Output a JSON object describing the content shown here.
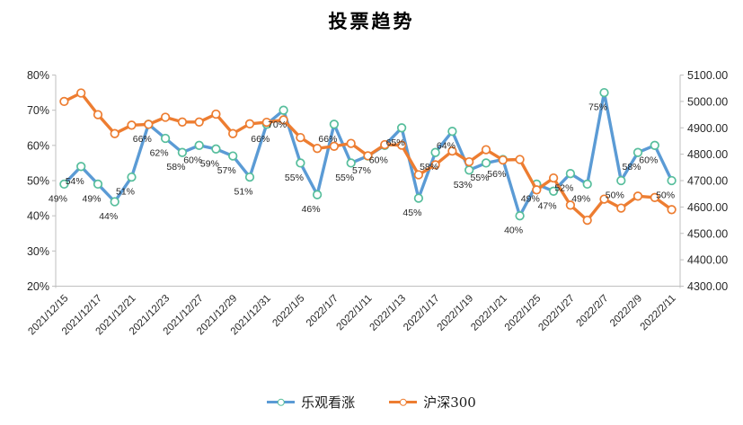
{
  "chart_data": {
    "type": "line",
    "title": "投票趋势",
    "grid": false,
    "x_tick_labels": [
      "2021/12/15",
      "2021/12/17",
      "2021/12/21",
      "2021/12/23",
      "2021/12/27",
      "2021/12/29",
      "2021/12/31",
      "2022/1/5",
      "2022/1/7",
      "2022/1/11",
      "2022/1/13",
      "2022/1/17",
      "2022/1/19",
      "2022/1/21",
      "2022/1/25",
      "2022/1/27",
      "2022/2/7",
      "2022/2/9",
      "2022/2/11"
    ],
    "x_label_every_n_points": 2,
    "series": [
      {
        "name": "乐观看涨",
        "axis": "left",
        "unit": "%",
        "color": "#5B9BD5",
        "marker_stroke": "#57BE9C",
        "data_labels_visible": true,
        "values": [
          49,
          54,
          49,
          44,
          51,
          66,
          62,
          58,
          60,
          59,
          57,
          51,
          66,
          70,
          55,
          46,
          66,
          55,
          57,
          60,
          65,
          45,
          58,
          64,
          53,
          55,
          56,
          40,
          49,
          47,
          52,
          49,
          75,
          50,
          58,
          60,
          50
        ]
      },
      {
        "name": "沪深300",
        "axis": "right",
        "unit": "",
        "color": "#ED7D31",
        "marker_stroke": "#ED7D31",
        "data_labels_visible": false,
        "values": [
          5000,
          5032,
          4950,
          4878,
          4910,
          4913,
          4940,
          4922,
          4922,
          4952,
          4878,
          4915,
          4921,
          4930,
          4863,
          4822,
          4830,
          4841,
          4794,
          4836,
          4834,
          4722,
          4760,
          4812,
          4771,
          4817,
          4778,
          4780,
          4665,
          4710,
          4607,
          4550,
          4630,
          4596,
          4641,
          4636,
          4590
        ]
      }
    ],
    "left_axis": {
      "min": 20,
      "max": 80,
      "step": 10,
      "tick_labels": [
        "80%",
        "70%",
        "60%",
        "50%",
        "40%",
        "30%",
        "20%"
      ]
    },
    "right_axis": {
      "min": 4300,
      "max": 5100,
      "step": 100,
      "tick_labels": [
        "5100.00",
        "5000.00",
        "4900.00",
        "4800.00",
        "4700.00",
        "4600.00",
        "4500.00",
        "4400.00",
        "4300.00"
      ]
    },
    "legend": {
      "position": "bottom",
      "items": [
        "乐观看涨",
        "沪深300"
      ]
    },
    "colors": {
      "axis_line": "#BFBFBF",
      "tick_text": "#262626",
      "data_label_text": "#262626",
      "background": "#FFFFFF"
    }
  }
}
